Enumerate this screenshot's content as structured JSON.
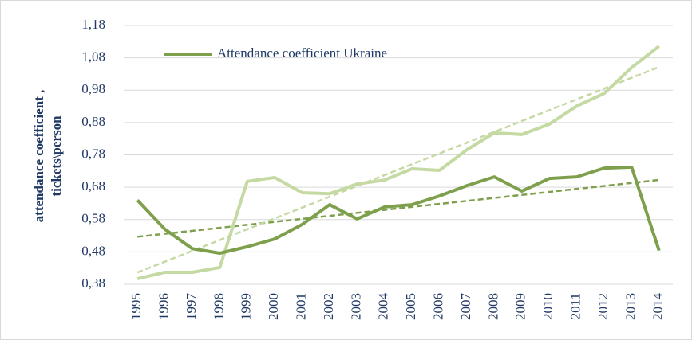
{
  "chart_data": {
    "type": "line",
    "ylabel": [
      "attendance coefficient ,",
      "tickets\\person"
    ],
    "categories": [
      "1995",
      "1996",
      "1997",
      "1998",
      "1999",
      "2000",
      "2001",
      "2002",
      "2003",
      "2004",
      "2005",
      "2006",
      "2007",
      "2008",
      "2009",
      "2010",
      "2011",
      "2012",
      "2013",
      "2014"
    ],
    "series": [
      {
        "name": "Attendance coefficient Ukraine",
        "color": "#7ea04d",
        "trendline": true,
        "values": [
          0.64,
          0.55,
          0.49,
          0.476,
          0.496,
          0.52,
          0.565,
          0.626,
          0.582,
          0.619,
          0.626,
          0.653,
          0.685,
          0.712,
          0.668,
          0.707,
          0.712,
          0.739,
          0.742,
          0.484
        ]
      },
      {
        "color": "#c5d9a3",
        "trendline": true,
        "values": [
          0.397,
          0.417,
          0.417,
          0.432,
          0.698,
          0.71,
          0.663,
          0.66,
          0.69,
          0.702,
          0.737,
          0.732,
          0.796,
          0.848,
          0.843,
          0.875,
          0.931,
          0.97,
          1.05,
          1.116
        ]
      }
    ],
    "ylim": [
      0.38,
      1.18
    ],
    "yticks": [
      {
        "value": 0.38,
        "label": "0,38"
      },
      {
        "value": 0.48,
        "label": "0,48"
      },
      {
        "value": 0.58,
        "label": "0,58"
      },
      {
        "value": 0.68,
        "label": "0,68"
      },
      {
        "value": 0.78,
        "label": "0,78"
      },
      {
        "value": 0.88,
        "label": "0,88"
      },
      {
        "value": 0.98,
        "label": "0,98"
      },
      {
        "value": 1.08,
        "label": "1,08"
      },
      {
        "value": 1.18,
        "label": "1,18"
      }
    ],
    "grid": true,
    "legend": "top-left"
  }
}
